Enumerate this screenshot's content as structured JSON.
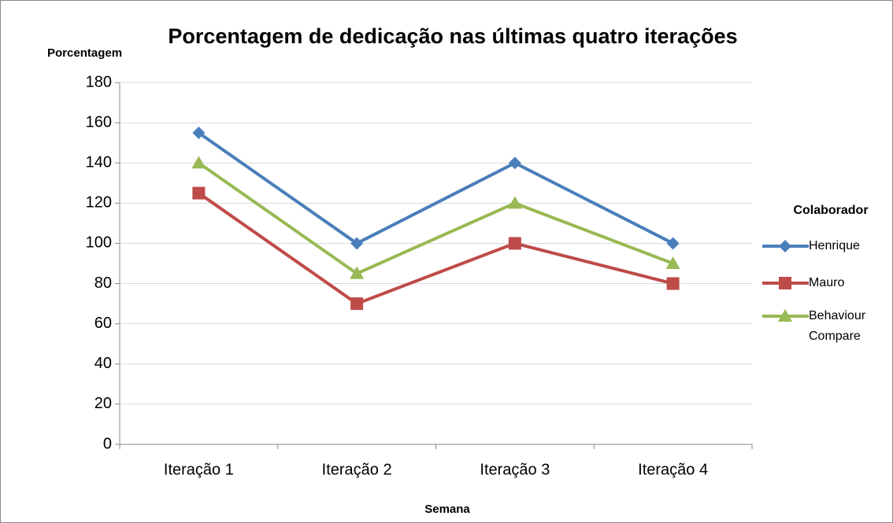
{
  "chart_data": {
    "type": "line",
    "title": "Porcentagem de dedicação nas últimas quatro iterações",
    "y_label": "Porcentagem",
    "x_label": "Semana",
    "legend_title": "Colaborador",
    "legend": "right",
    "grid": true,
    "categories": [
      "Iteração 1",
      "Iteração 2",
      "Iteração 3",
      "Iteração 4"
    ],
    "series": [
      {
        "name": "Henrique",
        "color": "#4a7ebb",
        "marker": "diamond",
        "values": [
          155,
          100,
          140,
          100
        ]
      },
      {
        "name": "Mauro",
        "color": "#be4b48",
        "marker": "square",
        "values": [
          125,
          70,
          100,
          80
        ]
      },
      {
        "name": "Behaviour Compare",
        "color": "#98b954",
        "marker": "triangle",
        "values": [
          140,
          85,
          120,
          90
        ]
      }
    ],
    "ylim": [
      0,
      180
    ],
    "yticks": [
      0,
      20,
      40,
      60,
      80,
      100,
      120,
      140,
      160,
      180
    ]
  }
}
